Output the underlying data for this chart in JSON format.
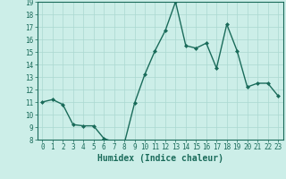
{
  "title": "",
  "xlabel": "Humidex (Indice chaleur)",
  "ylabel": "",
  "x": [
    0,
    1,
    2,
    3,
    4,
    5,
    6,
    7,
    8,
    9,
    10,
    11,
    12,
    13,
    14,
    15,
    16,
    17,
    18,
    19,
    20,
    21,
    22,
    23
  ],
  "y": [
    11,
    11.2,
    10.8,
    9.2,
    9.1,
    9.1,
    8.1,
    7.8,
    7.7,
    10.9,
    13.2,
    15.1,
    16.7,
    19.0,
    15.5,
    15.3,
    15.7,
    13.7,
    17.2,
    15.1,
    12.2,
    12.5,
    12.5,
    11.5
  ],
  "line_color": "#1a6b5a",
  "marker": "D",
  "marker_size": 2.0,
  "bg_color": "#cceee8",
  "grid_color": "#aad8d0",
  "ylim": [
    8,
    19
  ],
  "yticks": [
    8,
    9,
    10,
    11,
    12,
    13,
    14,
    15,
    16,
    17,
    18,
    19
  ],
  "xticks": [
    0,
    1,
    2,
    3,
    4,
    5,
    6,
    7,
    8,
    9,
    10,
    11,
    12,
    13,
    14,
    15,
    16,
    17,
    18,
    19,
    20,
    21,
    22,
    23
  ],
  "tick_fontsize": 5.5,
  "xlabel_fontsize": 7.0,
  "line_width": 1.0
}
